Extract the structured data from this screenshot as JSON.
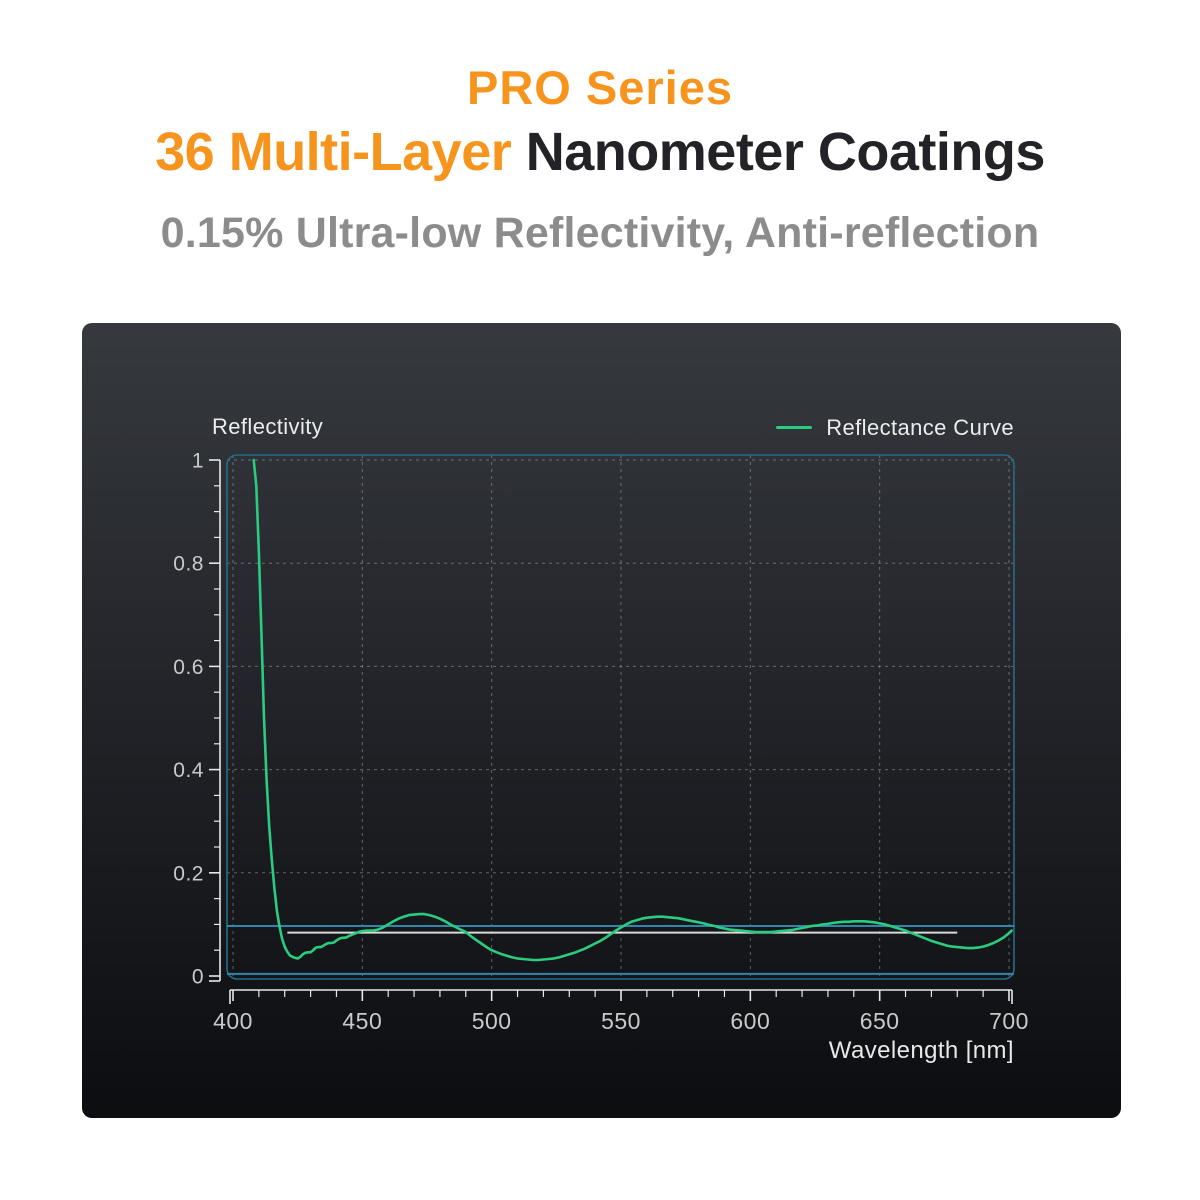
{
  "header": {
    "line1": "PRO Series",
    "line2_highlight": "36 Multi-Layer",
    "line2_rest": "Nanometer Coatings",
    "subtitle": "0.15% Ultra-low Reflectivity, Anti-reflection",
    "accent_color": "#F7941E",
    "dark_color": "#232327",
    "subtitle_color": "#8C8C8C"
  },
  "chart_data": {
    "type": "line",
    "axis_label_left": "Reflectivity",
    "xlabel": "Wavelength [nm]",
    "legend": [
      {
        "name": "Reflectance Curve",
        "color": "#2BCB80"
      }
    ],
    "legend_position": "top-right",
    "xlim": [
      400,
      700
    ],
    "ylim": [
      0,
      1
    ],
    "x_ticks": [
      400,
      450,
      500,
      550,
      600,
      650,
      700
    ],
    "x_tick_labels": [
      "400",
      "450",
      "500",
      "550",
      "600",
      "650",
      "700"
    ],
    "x_minor_step": 10,
    "y_ticks": [
      0,
      0.2,
      0.4,
      0.6,
      0.8,
      1
    ],
    "y_tick_labels": [
      "0",
      "0.2",
      "0.4",
      "0.6",
      "0.8",
      "1"
    ],
    "y_minor_step": 0.05,
    "grid": "dashed",
    "colors": {
      "grid": "#A8ADB3",
      "plot_border": "#256C88",
      "axis": "#E8E8E8",
      "tick_label": "#C9C9C9",
      "panel_top": "#36393E",
      "panel_bottom": "#0B0D10"
    },
    "reference_lines": [
      {
        "name": "upper-cyan-line",
        "value": 0.097,
        "color": "#2F86AB",
        "width": 2,
        "full_width": true
      },
      {
        "name": "lower-cyan-line",
        "value": 0.004,
        "color": "#2F86AB",
        "width": 2,
        "full_width": true
      },
      {
        "name": "gray-average-line",
        "value": 0.084,
        "color": "#D9D9D9",
        "width": 2,
        "full_width": false,
        "x_start": 421,
        "x_end": 680
      }
    ],
    "series": [
      {
        "name": "Reflectance Curve",
        "color": "#2BCB80",
        "points": [
          [
            408,
            1.0
          ],
          [
            409,
            0.95
          ],
          [
            410,
            0.82
          ],
          [
            411,
            0.66
          ],
          [
            412,
            0.5
          ],
          [
            413,
            0.38
          ],
          [
            414,
            0.29
          ],
          [
            415,
            0.225
          ],
          [
            416,
            0.17
          ],
          [
            417,
            0.125
          ],
          [
            418,
            0.095
          ],
          [
            419,
            0.072
          ],
          [
            420,
            0.057
          ],
          [
            421,
            0.047
          ],
          [
            422,
            0.04
          ],
          [
            423,
            0.037
          ],
          [
            424,
            0.035
          ],
          [
            425,
            0.034
          ],
          [
            426,
            0.037
          ],
          [
            427,
            0.042
          ],
          [
            428,
            0.045
          ],
          [
            429,
            0.046
          ],
          [
            430,
            0.046
          ],
          [
            431,
            0.05
          ],
          [
            432,
            0.055
          ],
          [
            433,
            0.056
          ],
          [
            434,
            0.056
          ],
          [
            435,
            0.059
          ],
          [
            436,
            0.062
          ],
          [
            437,
            0.064
          ],
          [
            438,
            0.064
          ],
          [
            439,
            0.065
          ],
          [
            440,
            0.069
          ],
          [
            441,
            0.072
          ],
          [
            442,
            0.074
          ],
          [
            443,
            0.074
          ],
          [
            444,
            0.075
          ],
          [
            445,
            0.078
          ],
          [
            446,
            0.08
          ],
          [
            447,
            0.082
          ],
          [
            448,
            0.084
          ],
          [
            449,
            0.086
          ],
          [
            450,
            0.087
          ],
          [
            452,
            0.088
          ],
          [
            454,
            0.088
          ],
          [
            456,
            0.09
          ],
          [
            458,
            0.094
          ],
          [
            460,
            0.1
          ],
          [
            462,
            0.106
          ],
          [
            464,
            0.111
          ],
          [
            466,
            0.115
          ],
          [
            468,
            0.118
          ],
          [
            470,
            0.119
          ],
          [
            472,
            0.12
          ],
          [
            474,
            0.12
          ],
          [
            476,
            0.118
          ],
          [
            478,
            0.115
          ],
          [
            480,
            0.111
          ],
          [
            482,
            0.106
          ],
          [
            484,
            0.1
          ],
          [
            486,
            0.095
          ],
          [
            488,
            0.09
          ],
          [
            490,
            0.085
          ],
          [
            492,
            0.077
          ],
          [
            494,
            0.07
          ],
          [
            496,
            0.063
          ],
          [
            498,
            0.056
          ],
          [
            500,
            0.05
          ],
          [
            502,
            0.046
          ],
          [
            504,
            0.042
          ],
          [
            506,
            0.039
          ],
          [
            508,
            0.036
          ],
          [
            510,
            0.034
          ],
          [
            512,
            0.033
          ],
          [
            514,
            0.032
          ],
          [
            516,
            0.031
          ],
          [
            518,
            0.031
          ],
          [
            520,
            0.032
          ],
          [
            522,
            0.033
          ],
          [
            524,
            0.034
          ],
          [
            526,
            0.036
          ],
          [
            528,
            0.039
          ],
          [
            530,
            0.042
          ],
          [
            532,
            0.045
          ],
          [
            534,
            0.049
          ],
          [
            536,
            0.053
          ],
          [
            538,
            0.058
          ],
          [
            540,
            0.063
          ],
          [
            542,
            0.068
          ],
          [
            544,
            0.074
          ],
          [
            546,
            0.081
          ],
          [
            548,
            0.088
          ],
          [
            550,
            0.094
          ],
          [
            552,
            0.1
          ],
          [
            554,
            0.105
          ],
          [
            556,
            0.108
          ],
          [
            558,
            0.111
          ],
          [
            560,
            0.113
          ],
          [
            562,
            0.114
          ],
          [
            564,
            0.115
          ],
          [
            566,
            0.115
          ],
          [
            568,
            0.114
          ],
          [
            570,
            0.113
          ],
          [
            572,
            0.112
          ],
          [
            574,
            0.11
          ],
          [
            576,
            0.108
          ],
          [
            578,
            0.106
          ],
          [
            580,
            0.104
          ],
          [
            582,
            0.102
          ],
          [
            584,
            0.099
          ],
          [
            586,
            0.097
          ],
          [
            588,
            0.094
          ],
          [
            590,
            0.092
          ],
          [
            592,
            0.09
          ],
          [
            594,
            0.089
          ],
          [
            596,
            0.088
          ],
          [
            598,
            0.087
          ],
          [
            600,
            0.086
          ],
          [
            602,
            0.085
          ],
          [
            604,
            0.085
          ],
          [
            606,
            0.085
          ],
          [
            608,
            0.085
          ],
          [
            610,
            0.086
          ],
          [
            612,
            0.087
          ],
          [
            614,
            0.088
          ],
          [
            616,
            0.089
          ],
          [
            618,
            0.091
          ],
          [
            620,
            0.093
          ],
          [
            622,
            0.095
          ],
          [
            624,
            0.097
          ],
          [
            626,
            0.098
          ],
          [
            628,
            0.1
          ],
          [
            630,
            0.101
          ],
          [
            632,
            0.103
          ],
          [
            634,
            0.104
          ],
          [
            636,
            0.105
          ],
          [
            638,
            0.105
          ],
          [
            640,
            0.106
          ],
          [
            642,
            0.106
          ],
          [
            644,
            0.106
          ],
          [
            646,
            0.105
          ],
          [
            648,
            0.104
          ],
          [
            650,
            0.102
          ],
          [
            652,
            0.1
          ],
          [
            654,
            0.097
          ],
          [
            656,
            0.094
          ],
          [
            658,
            0.091
          ],
          [
            660,
            0.088
          ],
          [
            662,
            0.084
          ],
          [
            664,
            0.08
          ],
          [
            666,
            0.076
          ],
          [
            668,
            0.072
          ],
          [
            670,
            0.068
          ],
          [
            672,
            0.065
          ],
          [
            674,
            0.062
          ],
          [
            676,
            0.059
          ],
          [
            678,
            0.057
          ],
          [
            680,
            0.056
          ],
          [
            682,
            0.055
          ],
          [
            684,
            0.054
          ],
          [
            686,
            0.054
          ],
          [
            688,
            0.055
          ],
          [
            690,
            0.057
          ],
          [
            692,
            0.06
          ],
          [
            694,
            0.064
          ],
          [
            696,
            0.069
          ],
          [
            698,
            0.075
          ],
          [
            700,
            0.083
          ],
          [
            701,
            0.088
          ]
        ]
      }
    ]
  }
}
